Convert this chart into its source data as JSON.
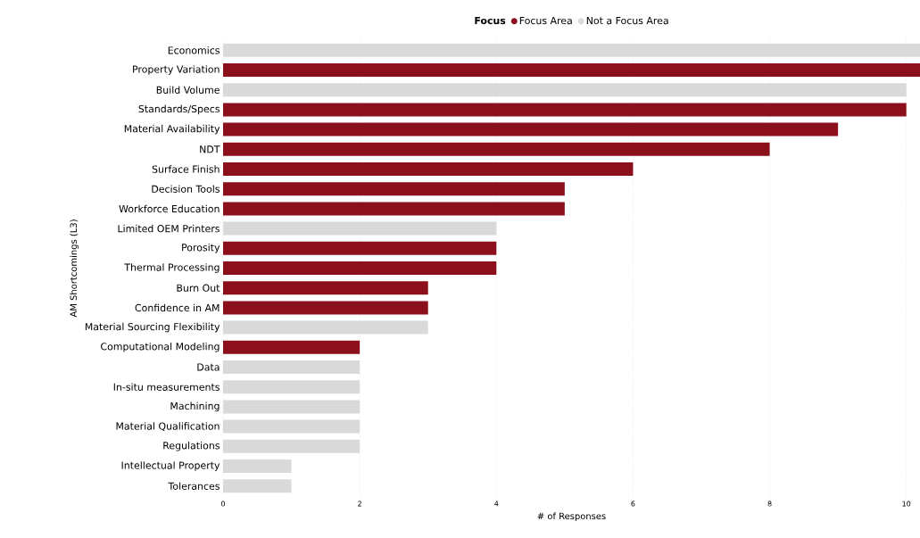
{
  "chart_data": {
    "type": "bar",
    "orientation": "horizontal",
    "xlabel": "# of Responses",
    "ylabel": "AM Shortcomings (L3)",
    "legend_title": "Focus",
    "legend": "top",
    "categories": [
      "Economics",
      "Property Variation",
      "Build Volume",
      "Standards/Specs",
      "Material Availability",
      "NDT",
      "Surface Finish",
      "Decision Tools",
      "Workforce Education",
      "Limited OEM Printers",
      "Porosity",
      "Thermal Processing",
      "Burn Out",
      "Confidence in AM",
      "Material Sourcing Flexibility",
      "Computational Modeling",
      "Data",
      "In-situ measurements",
      "Machining",
      "Material Qualification",
      "Regulations",
      "Intellectual Property",
      "Tolerances"
    ],
    "series": [
      {
        "name": "Focus Area",
        "color": "#8b101c",
        "values": [
          null,
          10.2,
          null,
          10,
          9,
          8,
          6,
          5,
          5,
          null,
          4,
          4,
          3,
          3,
          null,
          2,
          null,
          null,
          null,
          null,
          null,
          null,
          null
        ]
      },
      {
        "name": "Not a Focus Area",
        "color": "#d9d9d9",
        "values": [
          10.2,
          null,
          10,
          null,
          null,
          null,
          null,
          null,
          null,
          4,
          null,
          null,
          null,
          null,
          3,
          null,
          2,
          2,
          2,
          2,
          2,
          1,
          1
        ]
      }
    ],
    "xlim": [
      0,
      10.2
    ],
    "xticks": [
      0,
      2,
      4,
      6,
      8,
      10
    ],
    "grid": "x"
  }
}
